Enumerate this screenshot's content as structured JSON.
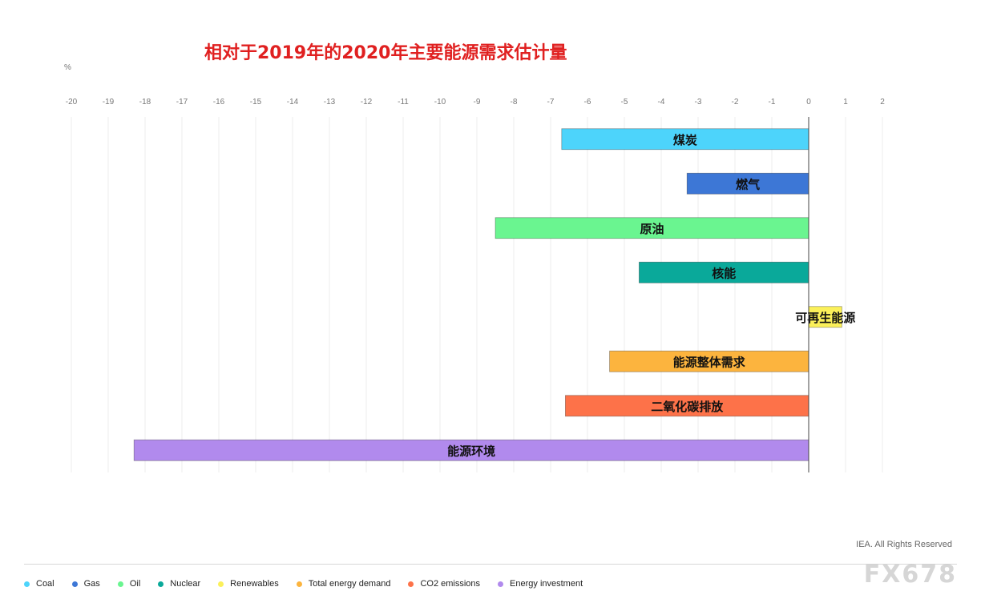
{
  "title": "相对于2019年的2020年主要能源需求估计量",
  "unit": "%",
  "copyright": "IEA. All Rights Reserved",
  "watermark": "FX678",
  "chart_data": {
    "type": "bar",
    "orientation": "horizontal",
    "title": "相对于2019年的2020年主要能源需求估计量",
    "xlabel": "%",
    "xlim": [
      -20,
      2
    ],
    "ticks": [
      "-20",
      "-19",
      "-18",
      "-17",
      "-16",
      "-15",
      "-14",
      "-13",
      "-12",
      "-11",
      "-10",
      "-9",
      "-8",
      "-7",
      "-6",
      "-5",
      "-4",
      "-3",
      "-2",
      "-1",
      "0",
      "1",
      "2"
    ],
    "grid": true,
    "legend_position": "bottom",
    "categories": [
      "煤炭",
      "燃气",
      "原油",
      "核能",
      "可再生能源",
      "能源整体需求",
      "二氧化碳排放",
      "能源环境"
    ],
    "values": [
      -6.7,
      -3.3,
      -8.5,
      -4.6,
      0.9,
      -5.4,
      -6.6,
      -18.3
    ],
    "colors": [
      "#4dd4fb",
      "#3d77d6",
      "#6af590",
      "#0aa99a",
      "#fbf05a",
      "#fcb43e",
      "#fd7249",
      "#b18aed"
    ],
    "legend": [
      {
        "name": "Coal",
        "color": "#4dd4fb"
      },
      {
        "name": "Gas",
        "color": "#3d77d6"
      },
      {
        "name": "Oil",
        "color": "#6af590"
      },
      {
        "name": "Nuclear",
        "color": "#0aa99a"
      },
      {
        "name": "Renewables",
        "color": "#fbf05a"
      },
      {
        "name": "Total energy demand",
        "color": "#fcb43e"
      },
      {
        "name": "CO2 emissions",
        "color": "#fd7249"
      },
      {
        "name": "Energy investment",
        "color": "#b18aed"
      }
    ]
  }
}
